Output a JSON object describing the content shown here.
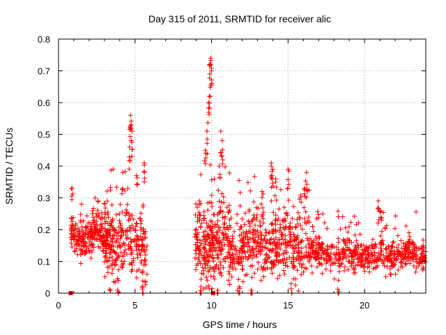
{
  "chart_data": {
    "type": "scatter",
    "title": "Day 315 of 2011, SRMTID for receiver alic",
    "xlabel": "GPS time / hours",
    "ylabel": "SRMTID / TECUs",
    "xlim": [
      0,
      24
    ],
    "ylim": [
      0,
      0.8
    ],
    "grid": true,
    "series_color": "#ff0000",
    "x_ticks": [
      0,
      5,
      10,
      15,
      20
    ],
    "y_ticks": [
      0,
      0.1,
      0.2,
      0.3,
      0.4,
      0.5,
      0.6,
      0.7,
      0.8
    ],
    "x_tick_labels": [
      "0",
      "5",
      "10",
      "15",
      "20"
    ],
    "y_tick_labels": [
      "0",
      "0.1",
      "0.2",
      "0.3",
      "0.4",
      "0.5",
      "0.6",
      "0.7",
      "0.8"
    ],
    "square_markers": [
      {
        "x": 0.8,
        "y": 0.0
      },
      {
        "x": 10.1,
        "y": 0.0
      }
    ],
    "segments": [
      {
        "x_start": 0.8,
        "x_end": 3.5,
        "count": 260,
        "base": 0.18,
        "spread": 0.05,
        "spikes": [
          {
            "x": 0.9,
            "y": 0.33
          },
          {
            "x": 1.5,
            "y": 0.28
          },
          {
            "x": 2.6,
            "y": 0.29
          }
        ]
      },
      {
        "x_start": 3.0,
        "x_end": 5.8,
        "count": 260,
        "base": 0.16,
        "spread": 0.09,
        "spikes": [
          {
            "x": 4.7,
            "y": 0.56
          },
          {
            "x": 4.75,
            "y": 0.53
          },
          {
            "x": 4.8,
            "y": 0.51
          },
          {
            "x": 4.65,
            "y": 0.46
          },
          {
            "x": 4.2,
            "y": 0.38
          },
          {
            "x": 5.6,
            "y": 0.41
          },
          {
            "x": 5.1,
            "y": 0.37
          },
          {
            "x": 3.9,
            "y": 0.04
          },
          {
            "x": 5.5,
            "y": 0.02
          }
        ]
      },
      {
        "x_start": 8.9,
        "x_end": 11.3,
        "count": 300,
        "base": 0.15,
        "spread": 0.1,
        "spikes": [
          {
            "x": 9.95,
            "y": 0.74
          },
          {
            "x": 9.9,
            "y": 0.72
          },
          {
            "x": 10.0,
            "y": 0.7
          },
          {
            "x": 9.85,
            "y": 0.62
          },
          {
            "x": 9.8,
            "y": 0.6
          },
          {
            "x": 9.7,
            "y": 0.51
          },
          {
            "x": 9.6,
            "y": 0.45
          },
          {
            "x": 10.6,
            "y": 0.51
          },
          {
            "x": 10.7,
            "y": 0.48
          },
          {
            "x": 10.5,
            "y": 0.4
          },
          {
            "x": 9.2,
            "y": 0.29
          },
          {
            "x": 9.3,
            "y": 0.02
          },
          {
            "x": 10.4,
            "y": 0.01
          }
        ]
      },
      {
        "x_start": 11.3,
        "x_end": 16.4,
        "count": 480,
        "base": 0.15,
        "spread": 0.08,
        "spikes": [
          {
            "x": 13.9,
            "y": 0.41
          },
          {
            "x": 14.0,
            "y": 0.39
          },
          {
            "x": 14.2,
            "y": 0.36
          },
          {
            "x": 15.0,
            "y": 0.39
          },
          {
            "x": 16.2,
            "y": 0.38
          },
          {
            "x": 16.1,
            "y": 0.33
          },
          {
            "x": 13.3,
            "y": 0.32
          },
          {
            "x": 11.8,
            "y": 0.02
          },
          {
            "x": 12.6,
            "y": 0.01
          },
          {
            "x": 15.2,
            "y": 0.03
          }
        ]
      },
      {
        "x_start": 16.4,
        "x_end": 24.0,
        "count": 560,
        "base": 0.12,
        "spread": 0.04,
        "spikes": [
          {
            "x": 20.9,
            "y": 0.29
          },
          {
            "x": 21.0,
            "y": 0.26
          },
          {
            "x": 21.1,
            "y": 0.23
          },
          {
            "x": 16.6,
            "y": 0.21
          },
          {
            "x": 22.9,
            "y": 0.19
          },
          {
            "x": 18.3,
            "y": 0.04
          }
        ]
      }
    ]
  }
}
